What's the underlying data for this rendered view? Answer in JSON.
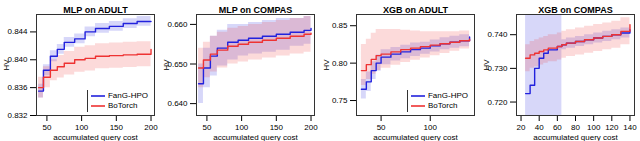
{
  "chart_data": [
    {
      "type": "line",
      "title": "MLP on ADULT",
      "x_label": "accumulated query cost",
      "y_label": "HV",
      "xlim": [
        35,
        205
      ],
      "xticks": [
        50,
        100,
        150,
        200
      ],
      "ylim": [
        0.832,
        0.8465
      ],
      "yticks": [
        {
          "value": 0.832,
          "label": "0.832"
        },
        {
          "value": 0.836,
          "label": "0.836"
        },
        {
          "value": 0.84,
          "label": "0.840"
        },
        {
          "value": 0.844,
          "label": "0.844"
        }
      ],
      "legend": "lower right",
      "x": [
        38,
        45,
        55,
        65,
        75,
        90,
        105,
        120,
        140,
        160,
        180,
        200
      ],
      "series": [
        {
          "name": "FanG-HPO",
          "color": "#2222dd",
          "values": [
            0.8355,
            0.8385,
            0.8405,
            0.8415,
            0.8425,
            0.843,
            0.844,
            0.8445,
            0.8448,
            0.8452,
            0.8455,
            0.8455
          ],
          "lower": [
            0.8345,
            0.8377,
            0.8397,
            0.8408,
            0.8418,
            0.8423,
            0.8433,
            0.8438,
            0.8441,
            0.8445,
            0.8448,
            0.8448
          ],
          "upper": [
            0.8365,
            0.8393,
            0.8413,
            0.8422,
            0.8432,
            0.8437,
            0.8447,
            0.8452,
            0.8455,
            0.8459,
            0.8462,
            0.8462
          ]
        },
        {
          "name": "BoTorch",
          "color": "#ee3333",
          "values": [
            0.836,
            0.8375,
            0.8385,
            0.839,
            0.8395,
            0.84,
            0.8402,
            0.8405,
            0.8406,
            0.8407,
            0.8408,
            0.8415
          ],
          "lower": [
            0.8345,
            0.836,
            0.837,
            0.8374,
            0.8378,
            0.8382,
            0.8384,
            0.8387,
            0.8388,
            0.8389,
            0.839,
            0.8398
          ],
          "upper": [
            0.8375,
            0.839,
            0.84,
            0.8406,
            0.8412,
            0.8418,
            0.842,
            0.8423,
            0.8424,
            0.8425,
            0.8426,
            0.8432
          ]
        }
      ]
    },
    {
      "type": "line",
      "title": "MLP on COMPAS",
      "x_label": "accumulated query cost",
      "y_label": "HV",
      "xlim": [
        35,
        205
      ],
      "xticks": [
        50,
        100,
        150,
        200
      ],
      "ylim": [
        0.637,
        0.6625
      ],
      "yticks": [
        {
          "value": 0.64,
          "label": "0.640"
        },
        {
          "value": 0.65,
          "label": "0.650"
        },
        {
          "value": 0.66,
          "label": "0.660"
        }
      ],
      "x": [
        38,
        45,
        55,
        65,
        80,
        95,
        110,
        130,
        150,
        170,
        190,
        200
      ],
      "series": [
        {
          "name": "FanG-HPO",
          "color": "#2222dd",
          "values": [
            0.645,
            0.649,
            0.652,
            0.654,
            0.6555,
            0.656,
            0.6565,
            0.657,
            0.6575,
            0.658,
            0.6585,
            0.659
          ],
          "lower": [
            0.64,
            0.644,
            0.647,
            0.6495,
            0.651,
            0.652,
            0.6525,
            0.653,
            0.6535,
            0.6545,
            0.655,
            0.6555
          ],
          "upper": [
            0.65,
            0.654,
            0.657,
            0.6585,
            0.66,
            0.66,
            0.6605,
            0.661,
            0.6615,
            0.6615,
            0.662,
            0.662
          ]
        },
        {
          "name": "BoTorch",
          "color": "#ee3333",
          "values": [
            0.649,
            0.651,
            0.6525,
            0.6535,
            0.6545,
            0.655,
            0.6555,
            0.656,
            0.6565,
            0.657,
            0.6575,
            0.6578
          ],
          "lower": [
            0.644,
            0.6465,
            0.648,
            0.649,
            0.65,
            0.6505,
            0.651,
            0.6515,
            0.652,
            0.6525,
            0.653,
            0.6535
          ],
          "upper": [
            0.654,
            0.6555,
            0.657,
            0.658,
            0.659,
            0.6595,
            0.66,
            0.6605,
            0.661,
            0.6615,
            0.662,
            0.662
          ]
        }
      ]
    },
    {
      "type": "line",
      "title": "XGB on ADULT",
      "x_label": "accumulated query cost",
      "y_label": "HV",
      "xlim": [
        25,
        145
      ],
      "xticks": [
        50,
        100
      ],
      "ylim": [
        0.73,
        0.865
      ],
      "yticks": [
        {
          "value": 0.75,
          "label": "0.75"
        },
        {
          "value": 0.8,
          "label": "0.80"
        },
        {
          "value": 0.85,
          "label": "0.85"
        }
      ],
      "legend": "lower right",
      "x": [
        30,
        35,
        40,
        45,
        50,
        60,
        70,
        80,
        90,
        100,
        110,
        120,
        130,
        140
      ],
      "series": [
        {
          "name": "FanG-HPO",
          "color": "#2222dd",
          "values": [
            0.765,
            0.775,
            0.79,
            0.8,
            0.808,
            0.812,
            0.815,
            0.818,
            0.82,
            0.823,
            0.826,
            0.828,
            0.83,
            0.835
          ],
          "lower": [
            0.752,
            0.762,
            0.778,
            0.789,
            0.798,
            0.803,
            0.806,
            0.809,
            0.812,
            0.815,
            0.818,
            0.82,
            0.822,
            0.826
          ],
          "upper": [
            0.778,
            0.788,
            0.802,
            0.811,
            0.818,
            0.821,
            0.824,
            0.827,
            0.828,
            0.831,
            0.834,
            0.836,
            0.838,
            0.843
          ]
        },
        {
          "name": "BoTorch",
          "color": "#ee3333",
          "values": [
            0.79,
            0.798,
            0.805,
            0.81,
            0.812,
            0.815,
            0.818,
            0.82,
            0.822,
            0.824,
            0.826,
            0.828,
            0.83,
            0.832
          ],
          "lower": [
            0.77,
            0.778,
            0.785,
            0.79,
            0.793,
            0.797,
            0.801,
            0.804,
            0.807,
            0.81,
            0.813,
            0.816,
            0.819,
            0.822
          ],
          "upper": [
            0.825,
            0.832,
            0.84,
            0.845,
            0.845,
            0.845,
            0.844,
            0.843,
            0.842,
            0.842,
            0.842,
            0.842,
            0.843,
            0.845
          ]
        }
      ]
    },
    {
      "type": "line",
      "title": "XGB on COMPAS",
      "x_label": "accumulated query cost",
      "y_label": "HV",
      "xlim": [
        15,
        145
      ],
      "xticks": [
        20,
        40,
        60,
        80,
        100,
        120,
        140
      ],
      "ylim": [
        0.716,
        0.746
      ],
      "yticks": [
        {
          "value": 0.72,
          "label": "0.720"
        },
        {
          "value": 0.73,
          "label": "0.730"
        },
        {
          "value": 0.74,
          "label": "0.740"
        }
      ],
      "x": [
        25,
        30,
        35,
        40,
        45,
        50,
        60,
        65,
        70,
        80,
        90,
        100,
        110,
        120,
        130,
        140
      ],
      "series": [
        {
          "name": "FanG-HPO",
          "color": "#2222dd",
          "values": [
            0.7225,
            0.725,
            0.73,
            0.733,
            0.7345,
            0.7355,
            0.7365,
            0.737,
            0.7375,
            0.738,
            0.7385,
            0.739,
            0.7395,
            0.74,
            0.7405,
            0.7415
          ],
          "lower": [
            0.71,
            0.71,
            0.71,
            0.71,
            0.71,
            0.71,
            0.71,
            0.7355,
            0.736,
            0.7365,
            0.737,
            0.7375,
            0.738,
            0.7385,
            0.739,
            0.74
          ],
          "upper": [
            0.75,
            0.75,
            0.75,
            0.75,
            0.75,
            0.75,
            0.75,
            0.7385,
            0.739,
            0.7395,
            0.74,
            0.7405,
            0.741,
            0.7415,
            0.742,
            0.743
          ]
        },
        {
          "name": "BoTorch",
          "color": "#ee3333",
          "values": [
            0.733,
            0.734,
            0.7345,
            0.735,
            0.7355,
            0.736,
            0.7365,
            0.737,
            0.7375,
            0.738,
            0.7385,
            0.739,
            0.7395,
            0.74,
            0.741,
            0.743
          ],
          "lower": [
            0.729,
            0.73,
            0.7305,
            0.731,
            0.7315,
            0.732,
            0.7325,
            0.733,
            0.7335,
            0.734,
            0.7345,
            0.735,
            0.7355,
            0.736,
            0.737,
            0.739
          ],
          "upper": [
            0.737,
            0.738,
            0.7385,
            0.739,
            0.7395,
            0.74,
            0.7405,
            0.741,
            0.7415,
            0.742,
            0.7425,
            0.743,
            0.7435,
            0.744,
            0.745,
            0.7465
          ]
        }
      ]
    }
  ]
}
